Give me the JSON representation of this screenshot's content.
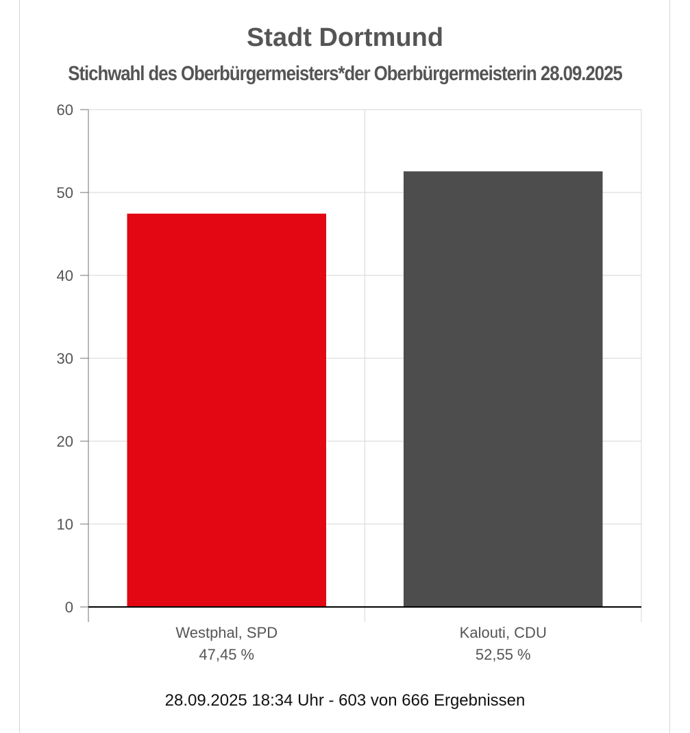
{
  "chart_data": {
    "type": "bar",
    "title": "Stadt Dortmund",
    "subtitle": "Stichwahl des Oberbürgermeisters*der Oberbürgermeisterin 28.09.2025",
    "categories": [
      "Westphal, SPD",
      "Kalouti, CDU"
    ],
    "values": [
      47.45,
      52.55
    ],
    "data_labels": [
      "47,45 %",
      "52,55 %"
    ],
    "colors": [
      "#e30613",
      "#4d4d4d"
    ],
    "ylim": [
      0,
      60
    ],
    "yticks": [
      0,
      10,
      20,
      30,
      40,
      50,
      60
    ],
    "grid": true,
    "legend": "none",
    "xlabel": "",
    "ylabel": ""
  },
  "footer": {
    "status": "28.09.2025 18:34 Uhr - 603 von 666 Ergebnissen"
  }
}
